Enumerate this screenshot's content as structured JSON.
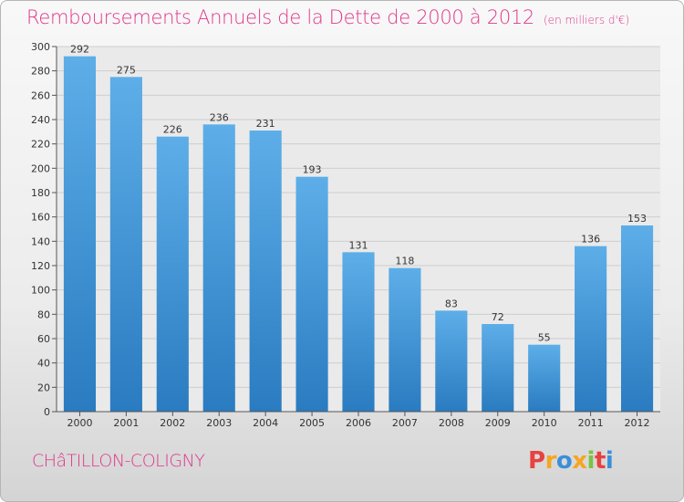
{
  "header": {
    "title": "Remboursements Annuels de la Dette de 2000 à 2012",
    "unit": "(en milliers d'€)"
  },
  "footer": {
    "commune": "CHâTILLON-COLIGNY",
    "logo_letters": [
      "P",
      "r",
      "o",
      "x",
      "i",
      "t",
      "i"
    ],
    "logo_colors": [
      "#e8423f",
      "#f5a623",
      "#3b8fd8",
      "#f5a623",
      "#7cc242",
      "#e8423f",
      "#3b8fd8"
    ]
  },
  "chart_data": {
    "type": "bar",
    "title": "Remboursements Annuels de la Dette de 2000 à 2012",
    "xlabel": "",
    "ylabel": "",
    "categories": [
      "2000",
      "2001",
      "2002",
      "2003",
      "2004",
      "2005",
      "2006",
      "2007",
      "2008",
      "2009",
      "2010",
      "2011",
      "2012"
    ],
    "values": [
      292,
      275,
      226,
      236,
      231,
      193,
      131,
      118,
      83,
      72,
      55,
      136,
      153
    ],
    "ylim": [
      0,
      300
    ],
    "yticks": [
      0,
      20,
      40,
      60,
      80,
      100,
      120,
      140,
      160,
      180,
      200,
      220,
      240,
      260,
      280,
      300
    ],
    "grid": true,
    "bar_color_top": "#5daee8",
    "bar_color_bottom": "#2a7bc0"
  }
}
